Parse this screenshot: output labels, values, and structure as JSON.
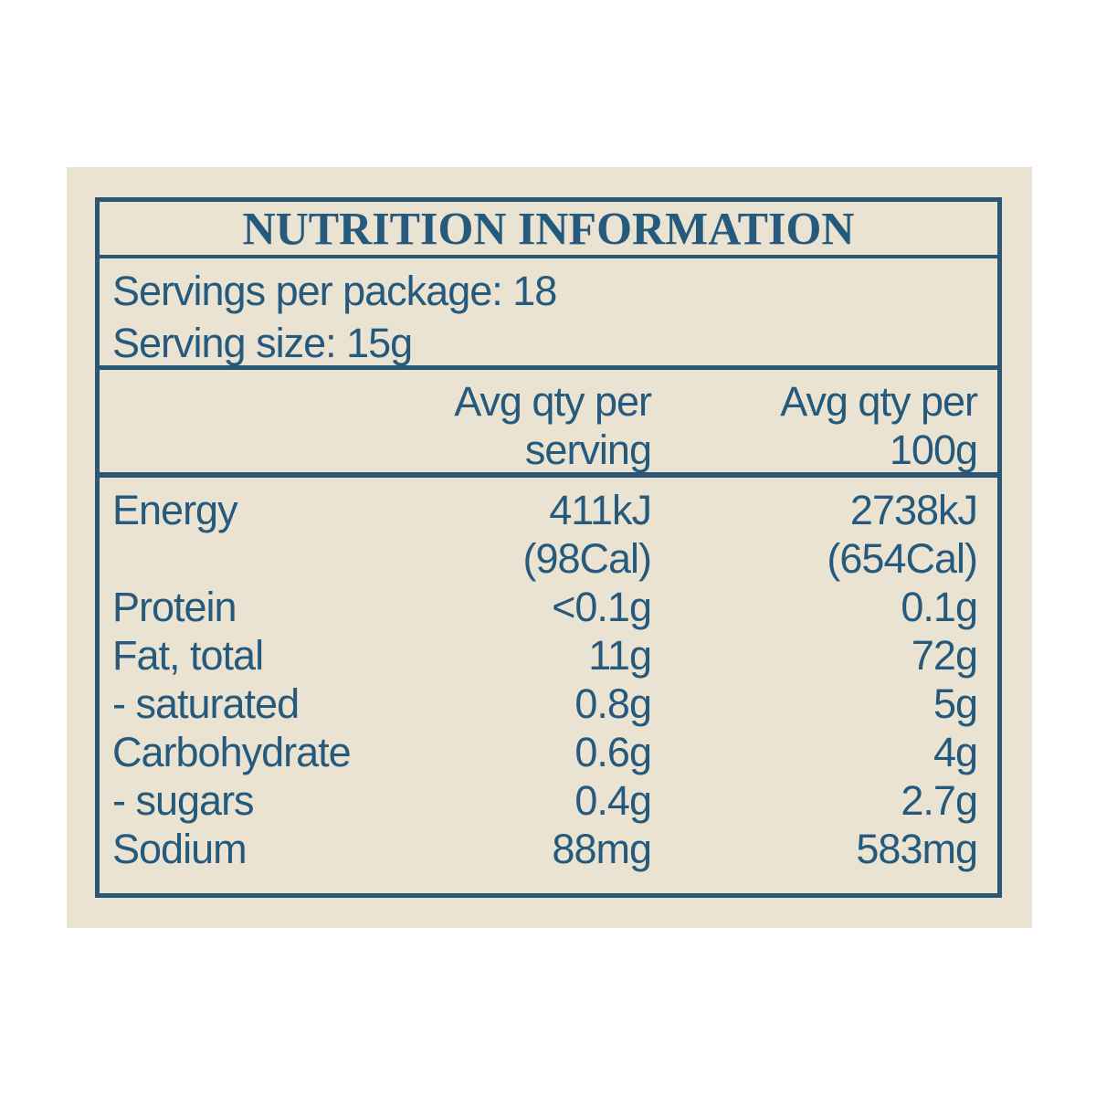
{
  "colors": {
    "panel_background": "#eae3d2",
    "border_blue": "#2b5675",
    "text_blue": "#255a7d",
    "page_background": "#ffffff"
  },
  "label": {
    "title": "NUTRITION INFORMATION",
    "servings_per_package": "Servings per package: 18",
    "serving_size": "Serving size: 15g",
    "columns": {
      "serving_line1": "Avg qty per",
      "serving_line2": "serving",
      "per100g_line1": "Avg qty per",
      "per100g_line2": "100g"
    },
    "rows": [
      {
        "label": "Energy",
        "serving": "411kJ",
        "per100g": "2738kJ"
      },
      {
        "label": "",
        "serving": "(98Cal)",
        "per100g": "(654Cal)"
      },
      {
        "label": "Protein",
        "serving": "<0.1g",
        "per100g": "0.1g"
      },
      {
        "label": "Fat, total",
        "serving": "11g",
        "per100g": "72g"
      },
      {
        "label": "- saturated",
        "serving": "0.8g",
        "per100g": "5g"
      },
      {
        "label": "Carbohydrate",
        "serving": "0.6g",
        "per100g": "4g"
      },
      {
        "label": "- sugars",
        "serving": "0.4g",
        "per100g": "2.7g"
      },
      {
        "label": "Sodium",
        "serving": "88mg",
        "per100g": "583mg"
      }
    ]
  }
}
